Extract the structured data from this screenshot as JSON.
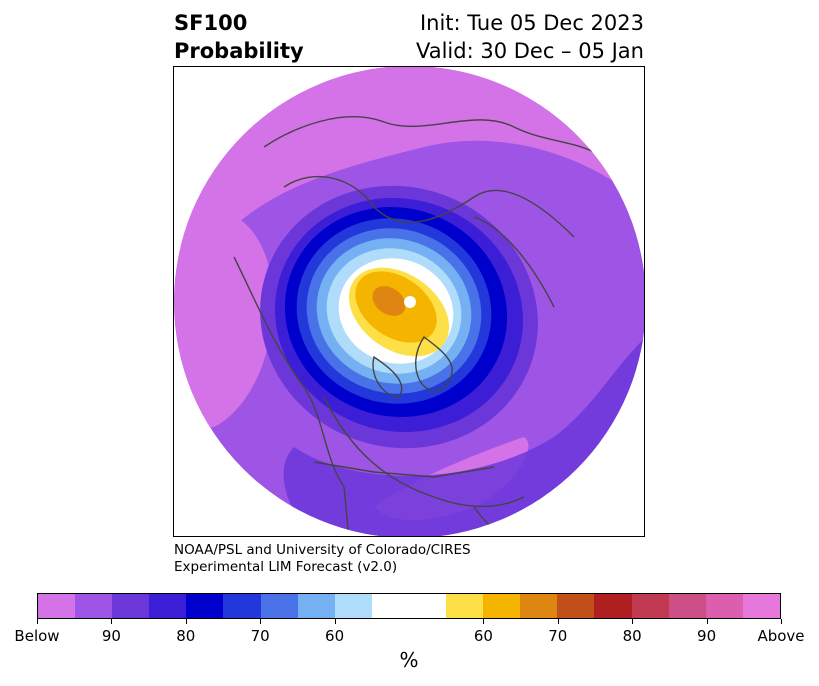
{
  "title": {
    "line1_left": "SF100",
    "line2_left": "Probability",
    "line1_right": "Init: Tue 05 Dec 2023",
    "line2_right": "Valid: 30 Dec – 05 Jan"
  },
  "credit": {
    "line1": "NOAA/PSL and University of Colorado/CIRES",
    "line2": "Experimental LIM Forecast (v2.0)"
  },
  "colorbar": {
    "unit": "%",
    "colors": [
      "#d472e8",
      "#9e55e6",
      "#6c37d9",
      "#3d1ed7",
      "#0000cc",
      "#2238db",
      "#4a72e8",
      "#74b0f2",
      "#aedcfa",
      "#ffffff",
      "#ffffff",
      "#fde047",
      "#f4b400",
      "#de8512",
      "#c2501a",
      "#b02020",
      "#c23a52",
      "#cc4f85",
      "#dc5eae",
      "#e678dc"
    ],
    "labels": [
      "Below",
      "90",
      "80",
      "70",
      "60",
      "60",
      "70",
      "80",
      "90",
      "Above"
    ]
  },
  "map": {
    "description_colors": {
      "outer": "#9e55e6",
      "pink": "#d472e8",
      "ring_dark": "#0000cc",
      "yellow": "#fde047",
      "orange": "#de8512"
    }
  }
}
